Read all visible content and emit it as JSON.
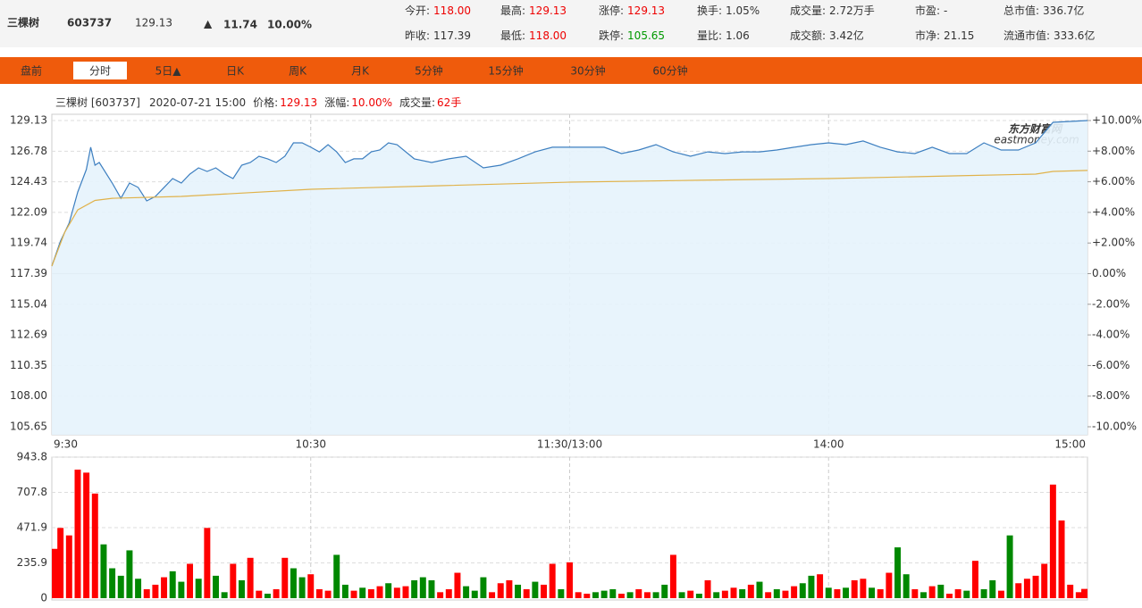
{
  "header": {
    "name": "三棵树",
    "code": "603737",
    "price": "129.13",
    "arrow": "▲",
    "change": "11.74",
    "change_pct": "10.00%",
    "stats": [
      [
        {
          "label": "今开:",
          "value": "118.00",
          "color": "#e00"
        },
        {
          "label": "最高:",
          "value": "129.13",
          "color": "#e00"
        },
        {
          "label": "涨停:",
          "value": "129.13",
          "color": "#e00"
        },
        {
          "label": "换手:",
          "value": "1.05%",
          "color": "#333"
        },
        {
          "label": "成交量:",
          "value": "2.72万手",
          "color": "#333"
        },
        {
          "label": "市盈:",
          "value": "-",
          "color": "#333"
        },
        {
          "label": "总市值:",
          "value": "336.7亿",
          "color": "#333"
        }
      ],
      [
        {
          "label": "昨收:",
          "value": "117.39",
          "color": "#333"
        },
        {
          "label": "最低:",
          "value": "118.00",
          "color": "#e00"
        },
        {
          "label": "跌停:",
          "value": "105.65",
          "color": "#090"
        },
        {
          "label": "量比:",
          "value": "1.06",
          "color": "#333"
        },
        {
          "label": "成交额:",
          "value": "3.42亿",
          "color": "#333"
        },
        {
          "label": "市净:",
          "value": "21.15",
          "color": "#333"
        },
        {
          "label": "流通市值:",
          "value": "333.6亿",
          "color": "#333"
        }
      ]
    ]
  },
  "tabs": [
    "盘前",
    "分时",
    "5日▲",
    "日K",
    "周K",
    "月K",
    "5分钟",
    "15分钟",
    "30分钟",
    "60分钟"
  ],
  "active_tab": 1,
  "info": {
    "name": "三棵树 [603737]",
    "time": "2020-07-21 15:00",
    "items": [
      {
        "label": "价格:",
        "value": "129.13"
      },
      {
        "label": "涨幅:",
        "value": "10.00%"
      },
      {
        "label": "成交量:",
        "value": "62手"
      }
    ]
  },
  "chart_data": [
    {
      "type": "line",
      "watermark": "东方财富网",
      "watermark_sub": "eastmoney.com",
      "grid": true,
      "xlim": [
        0,
        240
      ],
      "xticks": [
        {
          "value": 0,
          "label": "9:30"
        },
        {
          "value": 60,
          "label": "10:30"
        },
        {
          "value": 120,
          "label": "11:30/13:00"
        },
        {
          "value": 180,
          "label": "14:00"
        },
        {
          "value": 240,
          "label": "15:00"
        }
      ],
      "ylim": [
        105.65,
        129.13
      ],
      "yticks": [
        129.13,
        126.78,
        124.43,
        122.09,
        119.74,
        117.39,
        115.04,
        112.69,
        110.35,
        {
          "value": 108,
          "label": "108.00"
        },
        105.65
      ],
      "y2lim": [
        -10,
        10
      ],
      "y2ticks": [
        {
          "value": 10,
          "label": "+10.00%"
        },
        {
          "value": 8,
          "label": "+8.00%"
        },
        {
          "value": 6,
          "label": "+6.00%"
        },
        {
          "value": 4,
          "label": "+4.00%"
        },
        {
          "value": 2,
          "label": "+2.00%"
        },
        {
          "value": 0,
          "label": "0.00%"
        },
        {
          "value": -2,
          "label": "-2.00%"
        },
        {
          "value": -4,
          "label": "-4.00%"
        },
        {
          "value": -6,
          "label": "-6.00%"
        },
        {
          "value": -8,
          "label": "-8.00%"
        },
        {
          "value": -10,
          "label": "-10.00%"
        }
      ],
      "series": [
        {
          "color": "#3d7fc0",
          "x": [
            0,
            2,
            4,
            6,
            8,
            9,
            10,
            11,
            14,
            16,
            18,
            20,
            22,
            24,
            26,
            28,
            30,
            32,
            34,
            36,
            38,
            40,
            42,
            44,
            46,
            48,
            50,
            52,
            54,
            56,
            58,
            60,
            62,
            64,
            66,
            68,
            70,
            72,
            74,
            76,
            78,
            80,
            84,
            88,
            92,
            96,
            100,
            104,
            108,
            112,
            116,
            120,
            124,
            128,
            132,
            136,
            140,
            144,
            148,
            152,
            156,
            160,
            164,
            168,
            172,
            176,
            180,
            184,
            188,
            192,
            196,
            200,
            204,
            208,
            212,
            216,
            220,
            224,
            228,
            232,
            240
          ],
          "values": [
            117.97,
            119.89,
            121.26,
            123.65,
            125.37,
            127.08,
            125.71,
            125.91,
            124.34,
            123.17,
            124.34,
            124.0,
            122.97,
            123.31,
            124.0,
            124.68,
            124.34,
            125.02,
            125.5,
            125.23,
            125.5,
            125.02,
            124.68,
            125.71,
            125.91,
            126.39,
            126.19,
            125.91,
            126.39,
            127.42,
            127.42,
            127.08,
            126.73,
            127.28,
            126.73,
            125.91,
            126.19,
            126.19,
            126.73,
            126.87,
            127.42,
            127.28,
            126.19,
            125.91,
            126.19,
            126.39,
            125.5,
            125.71,
            126.19,
            126.73,
            127.08,
            127.08,
            127.08,
            127.08,
            126.6,
            126.87,
            127.28,
            126.73,
            126.39,
            126.73,
            126.6,
            126.73,
            126.73,
            126.87,
            127.08,
            127.28,
            127.42,
            127.28,
            127.56,
            127.08,
            126.73,
            126.6,
            127.08,
            126.6,
            126.6,
            127.42,
            126.87,
            126.87,
            127.42,
            128.99,
            129.13
          ]
        },
        {
          "color": "#e0b24a",
          "x": [
            0,
            3,
            6,
            10,
            14,
            30,
            60,
            90,
            120,
            150,
            180,
            210,
            228,
            232,
            240
          ],
          "values": [
            117.97,
            120.57,
            122.28,
            123.0,
            123.17,
            123.31,
            123.86,
            124.13,
            124.41,
            124.55,
            124.68,
            124.89,
            125.02,
            125.23,
            125.3
          ]
        }
      ]
    },
    {
      "type": "bar",
      "grid": true,
      "xlim": [
        0,
        240
      ],
      "xticks": [
        60,
        120,
        180
      ],
      "ylim": [
        0,
        943.8
      ],
      "yticks": [
        943.8,
        707.8,
        471.9,
        235.9,
        0
      ],
      "x": [
        0,
        2,
        4,
        6,
        8,
        10,
        12,
        14,
        16,
        18,
        20,
        22,
        24,
        26,
        28,
        30,
        32,
        34,
        36,
        38,
        40,
        42,
        44,
        46,
        48,
        50,
        52,
        54,
        56,
        58,
        60,
        62,
        64,
        66,
        68,
        70,
        72,
        74,
        76,
        78,
        80,
        82,
        84,
        86,
        88,
        90,
        92,
        94,
        96,
        98,
        100,
        102,
        104,
        106,
        108,
        110,
        112,
        114,
        116,
        118,
        120,
        122,
        124,
        126,
        128,
        130,
        132,
        134,
        136,
        138,
        140,
        142,
        144,
        146,
        148,
        150,
        152,
        154,
        156,
        158,
        160,
        162,
        164,
        166,
        168,
        170,
        172,
        174,
        176,
        178,
        180,
        182,
        184,
        186,
        188,
        190,
        192,
        194,
        196,
        198,
        200,
        202,
        204,
        206,
        208,
        210,
        212,
        214,
        216,
        218,
        220,
        222,
        224,
        226,
        228,
        230,
        232,
        234,
        236,
        238,
        240
      ],
      "values": [
        330,
        470,
        420,
        860,
        840,
        700,
        360,
        200,
        150,
        320,
        130,
        60,
        90,
        140,
        180,
        110,
        230,
        130,
        470,
        150,
        40,
        230,
        120,
        270,
        50,
        30,
        60,
        270,
        200,
        140,
        160,
        60,
        50,
        290,
        90,
        50,
        70,
        60,
        80,
        100,
        70,
        80,
        120,
        140,
        120,
        40,
        60,
        170,
        80,
        50,
        140,
        40,
        100,
        120,
        90,
        60,
        110,
        90,
        230,
        60,
        240,
        40,
        30,
        40,
        50,
        60,
        30,
        40,
        60,
        40,
        40,
        90,
        290,
        40,
        50,
        30,
        120,
        40,
        50,
        70,
        60,
        90,
        110,
        40,
        60,
        50,
        80,
        100,
        150,
        160,
        70,
        60,
        70,
        120,
        130,
        70,
        60,
        170,
        340,
        160,
        60,
        40,
        80,
        90,
        30,
        60,
        50,
        250,
        60,
        120,
        50,
        420,
        100,
        130,
        150,
        230,
        760,
        520,
        90,
        40,
        62
      ],
      "colors": [
        "#f00",
        "#f00",
        "#f00",
        "#f00",
        "#f00",
        "#f00",
        "#080",
        "#080",
        "#080",
        "#080",
        "#080",
        "#f00",
        "#f00",
        "#f00",
        "#080",
        "#080",
        "#f00",
        "#080",
        "#f00",
        "#080",
        "#080",
        "#f00",
        "#080",
        "#f00",
        "#f00",
        "#080",
        "#f00",
        "#f00",
        "#080",
        "#080",
        "#f00",
        "#f00",
        "#f00",
        "#080",
        "#080",
        "#f00",
        "#080",
        "#f00",
        "#f00",
        "#080",
        "#f00",
        "#f00",
        "#080",
        "#080",
        "#080",
        "#f00",
        "#f00",
        "#f00",
        "#080",
        "#080",
        "#080",
        "#f00",
        "#f00",
        "#f00",
        "#080",
        "#f00",
        "#080",
        "#f00",
        "#f00",
        "#080",
        "#f00",
        "#f00",
        "#f00",
        "#080",
        "#080",
        "#080",
        "#f00",
        "#080",
        "#f00",
        "#f00",
        "#080",
        "#080",
        "#f00",
        "#080",
        "#f00",
        "#080",
        "#f00",
        "#080",
        "#f00",
        "#f00",
        "#080",
        "#f00",
        "#080",
        "#f00",
        "#080",
        "#f00",
        "#f00",
        "#080",
        "#080",
        "#f00",
        "#080",
        "#f00",
        "#080",
        "#f00",
        "#f00",
        "#080",
        "#f00",
        "#f00",
        "#080",
        "#080",
        "#f00",
        "#080",
        "#f00",
        "#080",
        "#f00",
        "#f00",
        "#080",
        "#f00",
        "#080",
        "#080",
        "#f00",
        "#080",
        "#f00",
        "#f00",
        "#f00",
        "#f00",
        "#f00",
        "#f00",
        "#f00",
        "#f00",
        "#f00"
      ]
    }
  ]
}
